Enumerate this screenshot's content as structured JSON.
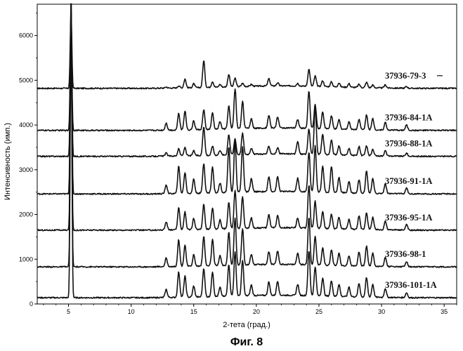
{
  "caption": "Фиг. 8",
  "chart_data": {
    "type": "line",
    "title": "",
    "xlabel": "2-тета (град.)",
    "ylabel": "Интенсивность (имп.)",
    "xlim": [
      2.5,
      36
    ],
    "ylim": [
      0,
      6700
    ],
    "x_ticks": [
      5,
      10,
      15,
      20,
      25,
      30,
      35
    ],
    "y_ticks": [
      0,
      1000,
      2000,
      3000,
      4000,
      5000,
      6000
    ],
    "grid": false,
    "peaks_2theta": [
      5.2,
      12.8,
      13.8,
      14.3,
      15.0,
      15.8,
      16.5,
      17.1,
      17.8,
      18.3,
      18.9,
      19.6,
      21.0,
      21.7,
      23.3,
      24.2,
      24.7,
      25.3,
      26.0,
      26.6,
      27.4,
      28.2,
      28.8,
      29.3,
      30.3,
      32.0
    ],
    "series": [
      {
        "name": "37936-79-3",
        "baseline": 4820,
        "intensities": [
          1700,
          25,
          50,
          200,
          90,
          600,
          130,
          60,
          280,
          190,
          70,
          40,
          160,
          70,
          60,
          380,
          230,
          130,
          110,
          90,
          80,
          70,
          120,
          60,
          70,
          40
        ]
      },
      {
        "name": "37936-84-1A",
        "baseline": 3880,
        "intensities": [
          2600,
          160,
          370,
          430,
          200,
          440,
          370,
          170,
          520,
          900,
          610,
          220,
          290,
          250,
          190,
          830,
          540,
          380,
          290,
          210,
          170,
          230,
          330,
          250,
          170,
          120
        ]
      },
      {
        "name": "37936-88-1A",
        "baseline": 3300,
        "intensities": [
          3150,
          70,
          160,
          190,
          110,
          650,
          210,
          110,
          460,
          360,
          470,
          140,
          170,
          130,
          280,
          560,
          1070,
          460,
          330,
          200,
          150,
          200,
          220,
          140,
          120,
          70
        ]
      },
      {
        "name": "37936-91-1A",
        "baseline": 2460,
        "intensities": [
          4300,
          200,
          610,
          470,
          320,
          670,
          580,
          220,
          1020,
          1150,
          1020,
          300,
          330,
          330,
          300,
          900,
          1040,
          590,
          590,
          340,
          260,
          300,
          500,
          330,
          220,
          130
        ]
      },
      {
        "name": "37936-95-1A",
        "baseline": 1650,
        "intensities": [
          4450,
          180,
          490,
          400,
          250,
          560,
          480,
          200,
          600,
          860,
          700,
          230,
          290,
          280,
          220,
          960,
          600,
          380,
          320,
          260,
          220,
          300,
          380,
          280,
          200,
          120
        ]
      },
      {
        "name": "37936-98-1",
        "baseline": 830,
        "intensities": [
          5300,
          190,
          600,
          480,
          260,
          660,
          590,
          220,
          750,
          1050,
          820,
          240,
          290,
          300,
          250,
          1060,
          640,
          390,
          340,
          270,
          230,
          320,
          450,
          300,
          210,
          120
        ]
      },
      {
        "name": "37936-101-1A",
        "baseline": 140,
        "intensities": [
          6900,
          180,
          570,
          470,
          250,
          640,
          560,
          200,
          720,
          980,
          790,
          240,
          300,
          320,
          250,
          1000,
          650,
          400,
          350,
          270,
          220,
          300,
          430,
          290,
          200,
          110
        ]
      }
    ]
  }
}
